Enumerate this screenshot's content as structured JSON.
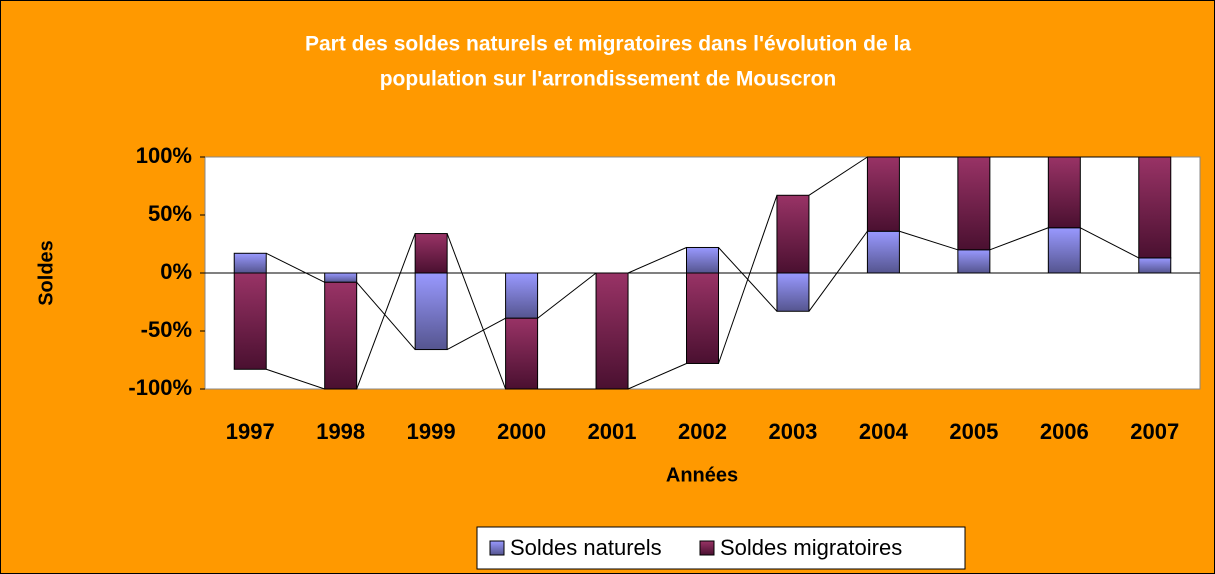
{
  "chart_data": {
    "type": "bar",
    "stacked": true,
    "title": [
      "Part des soldes naturels et migratoires dans l'évolution de la",
      "population sur l'arrondissement de Mouscron"
    ],
    "y_label": "Soldes",
    "x_label": "Années",
    "categories": [
      "1997",
      "1998",
      "1999",
      "2000",
      "2001",
      "2002",
      "2003",
      "2004",
      "2005",
      "2006",
      "2007"
    ],
    "series": [
      {
        "name": "Soldes naturels",
        "color": "#9999ff",
        "values": [
          17,
          -8,
          -66,
          -39,
          0,
          22,
          -33,
          36,
          20,
          39,
          13
        ]
      },
      {
        "name": "Soldes migratoires",
        "color": "#993366",
        "values": [
          -83,
          -92,
          34,
          -61,
          -100,
          -78,
          67,
          64,
          80,
          61,
          87
        ]
      }
    ],
    "ylim": [
      -100,
      100
    ],
    "yticks": [
      {
        "value": -100,
        "label": "-100%"
      },
      {
        "value": -50,
        "label": "-50%"
      },
      {
        "value": 0,
        "label": "0%"
      },
      {
        "value": 50,
        "label": "50%"
      },
      {
        "value": 100,
        "label": "100%"
      }
    ],
    "series_lines": true,
    "legend": "bottom"
  }
}
